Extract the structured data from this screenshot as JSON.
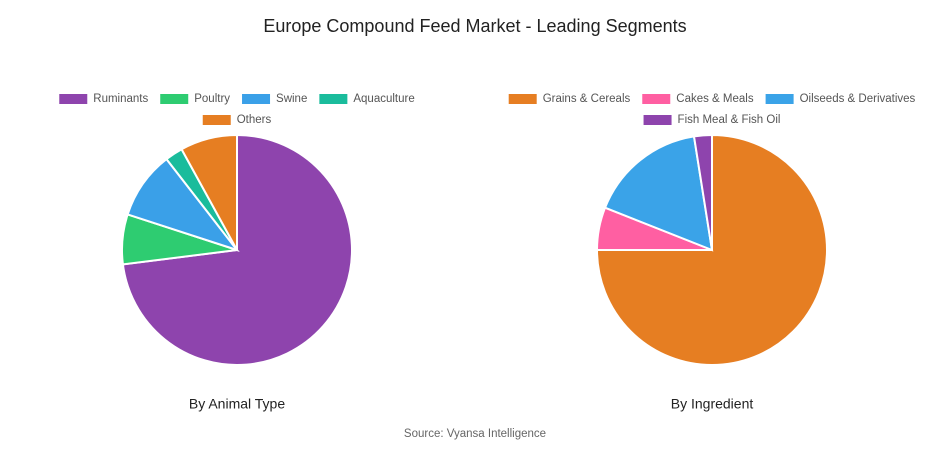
{
  "title": "Europe Compound Feed Market - Leading Segments",
  "source": "Source: Vyansa Intelligence",
  "chart_data": [
    {
      "type": "pie",
      "label": "By Animal Type",
      "categories": [
        "Ruminants",
        "Poultry",
        "Swine",
        "Aquaculture",
        "Others"
      ],
      "values": [
        73,
        7,
        9.5,
        2.5,
        8
      ],
      "colors": [
        "#8e44ad",
        "#2ecc71",
        "#3aa0e8",
        "#1abc9c",
        "#e67e22"
      ]
    },
    {
      "type": "pie",
      "label": "By Ingredient",
      "categories": [
        "Grains & Cereals",
        "Cakes & Meals",
        "Oilseeds & Derivatives",
        "Fish Meal & Fish Oil"
      ],
      "values": [
        75,
        6,
        16.5,
        2.5
      ],
      "colors": [
        "#e67e22",
        "#ff5fa2",
        "#3aa3e8",
        "#8e44ad"
      ]
    }
  ]
}
